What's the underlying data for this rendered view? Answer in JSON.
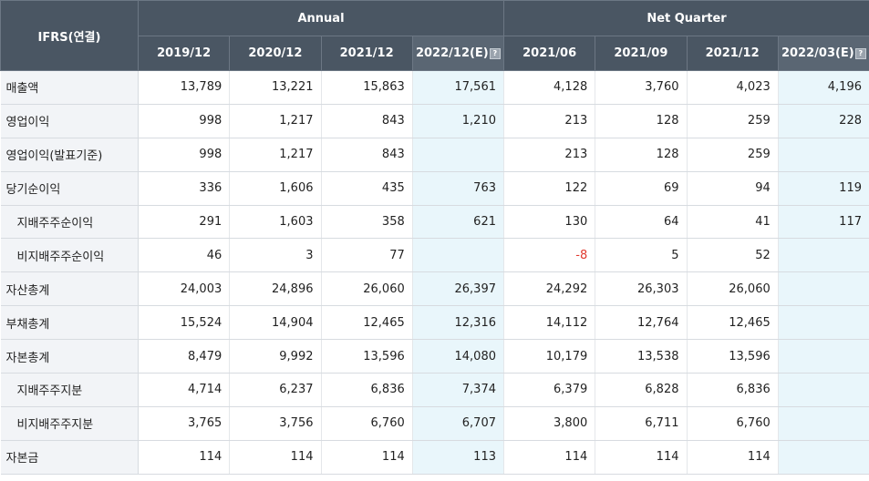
{
  "header": {
    "corner": "IFRS(연결)",
    "group_annual": "Annual",
    "group_quarter": "Net Quarter",
    "periods": [
      "2019/12",
      "2020/12",
      "2021/12",
      "2022/12(E)",
      "2021/06",
      "2021/09",
      "2021/12",
      "2022/03(E)"
    ],
    "estimate_icon": "question-icon"
  },
  "rows": [
    {
      "label": "매출액",
      "values": [
        "13,789",
        "13,221",
        "15,863",
        "17,561",
        "4,128",
        "3,760",
        "4,023",
        "4,196"
      ]
    },
    {
      "label": "영업이익",
      "values": [
        "998",
        "1,217",
        "843",
        "1,210",
        "213",
        "128",
        "259",
        "228"
      ]
    },
    {
      "label": "영업이익(발표기준)",
      "values": [
        "998",
        "1,217",
        "843",
        "",
        "213",
        "128",
        "259",
        ""
      ]
    },
    {
      "label": "당기순이익",
      "values": [
        "336",
        "1,606",
        "435",
        "763",
        "122",
        "69",
        "94",
        "119"
      ]
    },
    {
      "label": "지배주주순이익",
      "values": [
        "291",
        "1,603",
        "358",
        "621",
        "130",
        "64",
        "41",
        "117"
      ]
    },
    {
      "label": "비지배주주순이익",
      "values": [
        "46",
        "3",
        "77",
        "",
        "-8",
        "5",
        "52",
        ""
      ]
    },
    {
      "label": "자산총계",
      "values": [
        "24,003",
        "24,896",
        "26,060",
        "26,397",
        "24,292",
        "26,303",
        "26,060",
        ""
      ]
    },
    {
      "label": "부채총계",
      "values": [
        "15,524",
        "14,904",
        "12,465",
        "12,316",
        "14,112",
        "12,764",
        "12,465",
        ""
      ]
    },
    {
      "label": "자본총계",
      "values": [
        "8,479",
        "9,992",
        "13,596",
        "14,080",
        "10,179",
        "13,538",
        "13,596",
        ""
      ]
    },
    {
      "label": "지배주주지분",
      "values": [
        "4,714",
        "6,237",
        "6,836",
        "7,374",
        "6,379",
        "6,828",
        "6,836",
        ""
      ]
    },
    {
      "label": "비지배주주지분",
      "values": [
        "3,765",
        "3,756",
        "6,760",
        "6,707",
        "3,800",
        "6,711",
        "6,760",
        ""
      ]
    },
    {
      "label": "자본금",
      "values": [
        "114",
        "114",
        "114",
        "113",
        "114",
        "114",
        "114",
        ""
      ]
    }
  ]
}
